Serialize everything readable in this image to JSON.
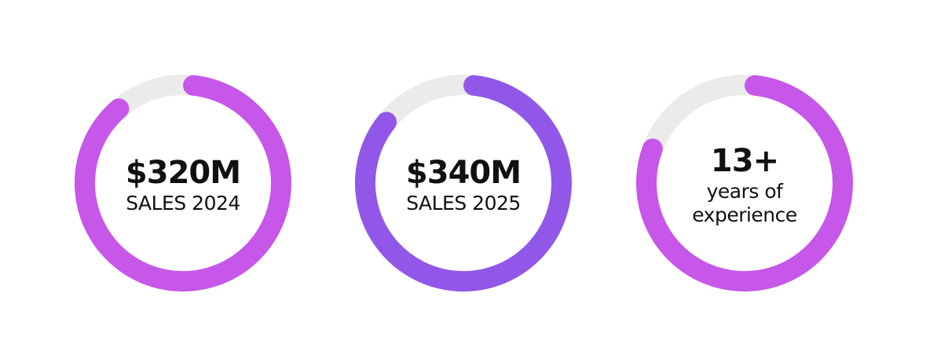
{
  "stats": [
    {
      "value": "$320M",
      "label": "SALES 2024",
      "progress": 87,
      "color": "#c657e8"
    },
    {
      "value": "$340M",
      "label": "SALES 2025",
      "progress": 84,
      "color": "#9157e8"
    },
    {
      "value": "13+",
      "label": "years of experience",
      "progress": 79,
      "color": "#c657e8"
    }
  ],
  "track_color": "#ebebeb"
}
